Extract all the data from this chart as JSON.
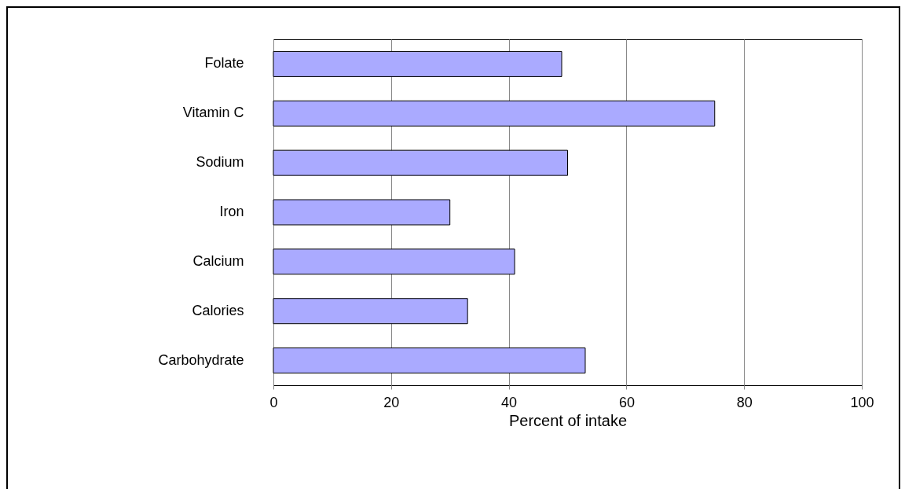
{
  "chart_data": {
    "type": "bar",
    "orientation": "horizontal",
    "xlabel": "Percent of intake",
    "categories": [
      "Folate",
      "Vitamin C",
      "Sodium",
      "Iron",
      "Calcium",
      "Calories",
      "Carbohydrate"
    ],
    "values": [
      49,
      75,
      50,
      30,
      41,
      33,
      53
    ],
    "color": "#aaaaff",
    "xlim": [
      0,
      100
    ],
    "xticks": [
      0,
      20,
      40,
      60,
      80,
      100
    ],
    "grid": "x"
  }
}
